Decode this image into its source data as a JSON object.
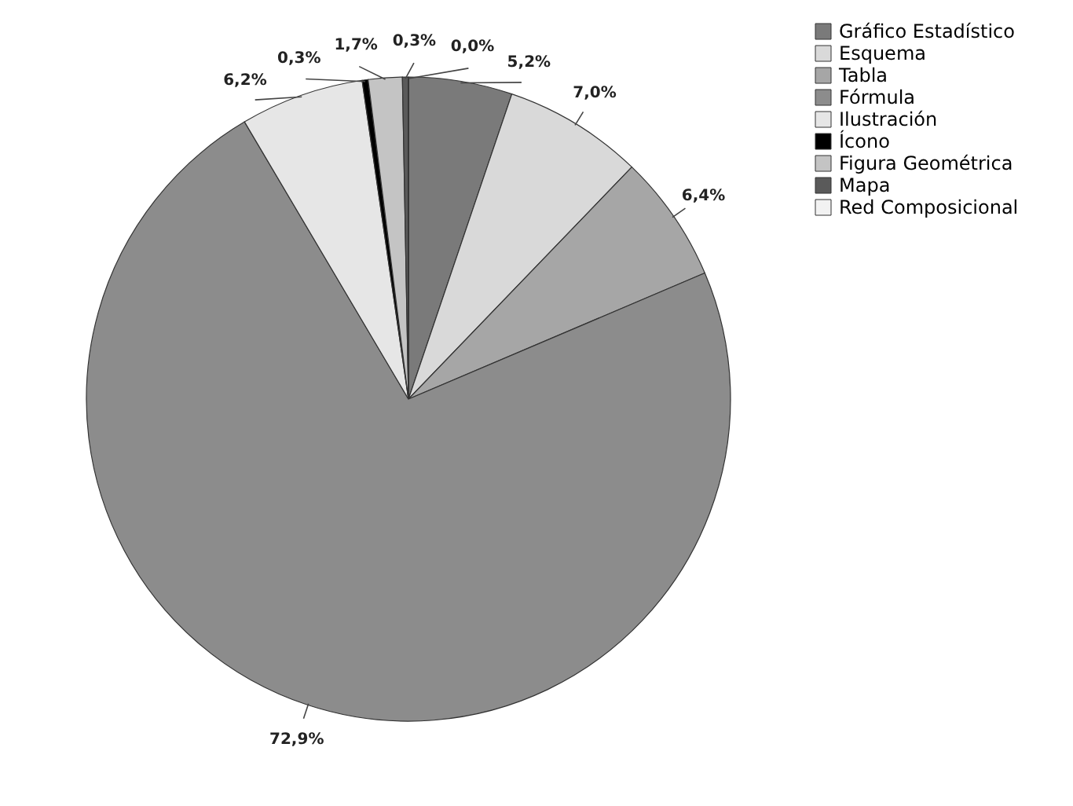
{
  "chart_data": {
    "type": "pie",
    "categories": [
      "Gráfico Estadístico",
      "Esquema",
      "Tabla",
      "Fórmula",
      "Ilustración",
      "Ícono",
      "Figura Geométrica",
      "Mapa",
      "Red Composicional"
    ],
    "values": [
      5.2,
      7.0,
      6.4,
      72.9,
      6.2,
      0.3,
      1.7,
      0.3,
      0.0
    ],
    "colors": [
      "#7a7a7a",
      "#d9d9d9",
      "#a6a6a6",
      "#8c8c8c",
      "#e6e6e6",
      "#000000",
      "#c4c4c4",
      "#5a5a5a",
      "#f2f2f2"
    ],
    "value_labels": [
      "5,2%",
      "7,0%",
      "6,4%",
      "72,9%",
      "6,2%",
      "0,3%",
      "1,7%",
      "0,3%",
      "0,0%"
    ],
    "legend": "right"
  }
}
